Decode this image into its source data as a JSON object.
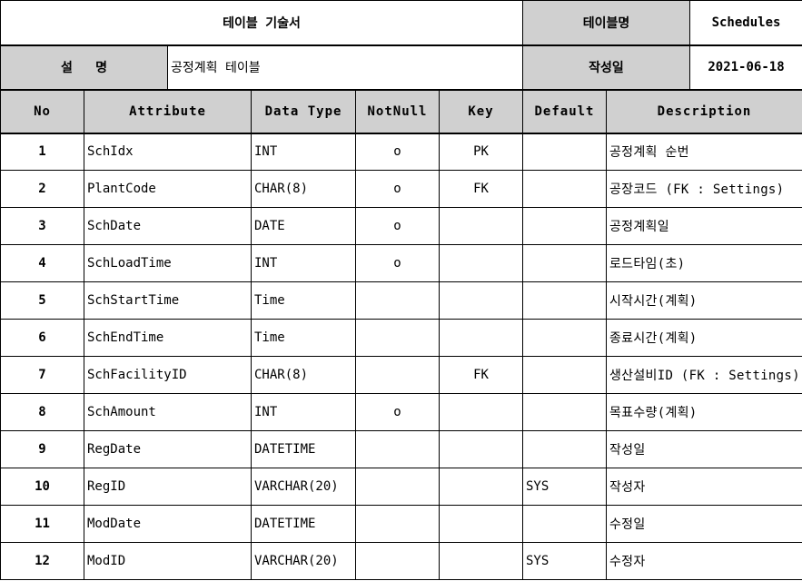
{
  "header": {
    "title": "테이블 기술서",
    "table_name_label": "테이블명",
    "table_name": "Schedules",
    "desc_label": "설   명",
    "desc_value": "공정계획 테이블",
    "created_label": "작성일",
    "created_date": "2021-06-18"
  },
  "columns": {
    "no": "No",
    "attribute": "Attribute",
    "data_type": "Data Type",
    "not_null": "NotNull",
    "key": "Key",
    "default": "Default",
    "description": "Description"
  },
  "rows": [
    {
      "no": "1",
      "attribute": "SchIdx",
      "data_type": "INT",
      "not_null": "o",
      "key": "PK",
      "default": "",
      "description": "공정계획 순번"
    },
    {
      "no": "2",
      "attribute": "PlantCode",
      "data_type": "CHAR(8)",
      "not_null": "o",
      "key": "FK",
      "default": "",
      "description": "공장코드 (FK : Settings)"
    },
    {
      "no": "3",
      "attribute": "SchDate",
      "data_type": "DATE",
      "not_null": "o",
      "key": "",
      "default": "",
      "description": "공정계획일"
    },
    {
      "no": "4",
      "attribute": "SchLoadTime",
      "data_type": "INT",
      "not_null": "o",
      "key": "",
      "default": "",
      "description": "로드타임(초)"
    },
    {
      "no": "5",
      "attribute": "SchStartTime",
      "data_type": "Time",
      "not_null": "",
      "key": "",
      "default": "",
      "description": "시작시간(계획)"
    },
    {
      "no": "6",
      "attribute": "SchEndTime",
      "data_type": "Time",
      "not_null": "",
      "key": "",
      "default": "",
      "description": "종료시간(계획)"
    },
    {
      "no": "7",
      "attribute": "SchFacilityID",
      "data_type": "CHAR(8)",
      "not_null": "",
      "key": "FK",
      "default": "",
      "description": "생산설비ID (FK : Settings)"
    },
    {
      "no": "8",
      "attribute": "SchAmount",
      "data_type": "INT",
      "not_null": "o",
      "key": "",
      "default": "",
      "description": "목표수량(계획)"
    },
    {
      "no": "9",
      "attribute": "RegDate",
      "data_type": "DATETIME",
      "not_null": "",
      "key": "",
      "default": "",
      "description": "작성일"
    },
    {
      "no": "10",
      "attribute": "RegID",
      "data_type": "VARCHAR(20)",
      "not_null": "",
      "key": "",
      "default": "SYS",
      "description": "작성자"
    },
    {
      "no": "11",
      "attribute": "ModDate",
      "data_type": "DATETIME",
      "not_null": "",
      "key": "",
      "default": "",
      "description": "수정일"
    },
    {
      "no": "12",
      "attribute": "ModID",
      "data_type": "VARCHAR(20)",
      "not_null": "",
      "key": "",
      "default": "SYS",
      "description": "수정자"
    }
  ]
}
